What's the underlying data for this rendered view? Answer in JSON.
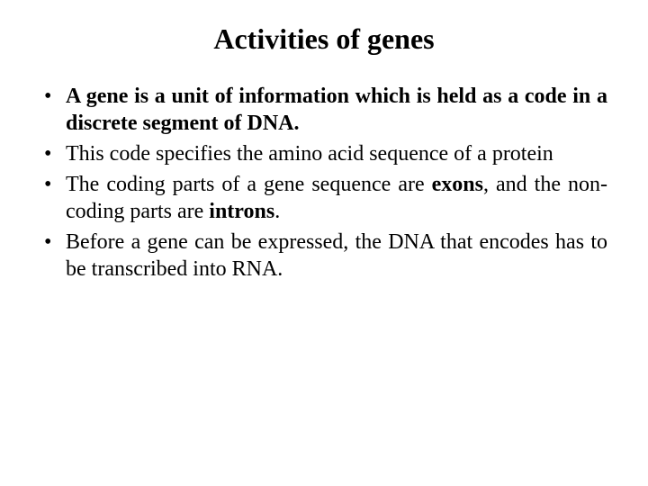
{
  "title": "Activities of genes",
  "bullets": [
    {
      "prefix": "",
      "bold1": "A gene is a unit of information which is held as a code in a discrete segment of DNA.",
      "middle": "",
      "bold2": "",
      "suffix": ""
    },
    {
      "prefix": "This code specifies the amino acid sequence of a protein",
      "bold1": "",
      "middle": "",
      "bold2": "",
      "suffix": ""
    },
    {
      "prefix": "The coding parts of a gene sequence are ",
      "bold1": "exons",
      "middle": ", and the non- coding parts are ",
      "bold2": "introns",
      "suffix": "."
    },
    {
      "prefix": "Before a gene can be expressed, the DNA that encodes has to be transcribed into RNA.",
      "bold1": "",
      "middle": "",
      "bold2": "",
      "suffix": ""
    }
  ],
  "colors": {
    "background": "#ffffff",
    "text": "#000000"
  },
  "typography": {
    "font_family": "Times New Roman",
    "title_fontsize": 32,
    "body_fontsize": 24,
    "title_weight": "bold"
  }
}
